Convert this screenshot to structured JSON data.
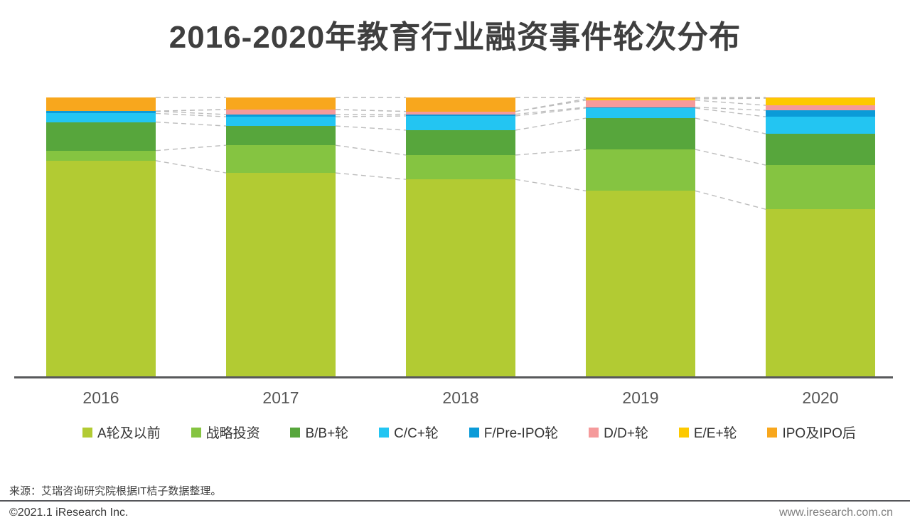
{
  "title": "2016-2020年教育行业融资事件轮次分布",
  "chart_data": {
    "type": "bar",
    "stacked": true,
    "unit": "percent-share",
    "title": "2016-2020年教育行业融资事件轮次分布",
    "categories": [
      "2016",
      "2017",
      "2018",
      "2019",
      "2020"
    ],
    "series": [
      {
        "name": "A轮及以前",
        "color": "#b2cb33",
        "values": [
          77.4,
          73.0,
          70.7,
          66.6,
          60.0
        ]
      },
      {
        "name": "战略投资",
        "color": "#85c441",
        "values": [
          3.6,
          9.9,
          8.7,
          14.8,
          15.8
        ]
      },
      {
        "name": "B/B+轮",
        "color": "#57a63c",
        "values": [
          10.2,
          6.9,
          8.9,
          11.2,
          11.2
        ]
      },
      {
        "name": "C/C+轮",
        "color": "#23c5f2",
        "values": [
          3.1,
          3.3,
          5.1,
          3.6,
          6.1
        ]
      },
      {
        "name": "F/Pre-IPO轮",
        "color": "#0b9bd8",
        "values": [
          0.8,
          0.8,
          0.6,
          0.3,
          2.3
        ]
      },
      {
        "name": "D/D+轮",
        "color": "#f59a9b",
        "values": [
          0.0,
          1.8,
          1.0,
          2.5,
          1.8
        ]
      },
      {
        "name": "E/E+轮",
        "color": "#fdc900",
        "values": [
          0.0,
          0.0,
          0.0,
          0.5,
          2.5
        ]
      },
      {
        "name": "IPO及IPO后",
        "color": "#f8a71d",
        "values": [
          4.9,
          4.3,
          5.0,
          0.5,
          0.3
        ]
      }
    ],
    "ylim": [
      0,
      100
    ],
    "grid": false,
    "legend_position": "bottom",
    "connector_lines": "dashed gray lines join segment boundaries of adjacent bars"
  },
  "footer": {
    "source": "来源：艾瑞咨询研究院根据IT桔子数据整理。",
    "copyright": "©2021.1 iResearch Inc.",
    "website": "www.iresearch.com.cn"
  }
}
